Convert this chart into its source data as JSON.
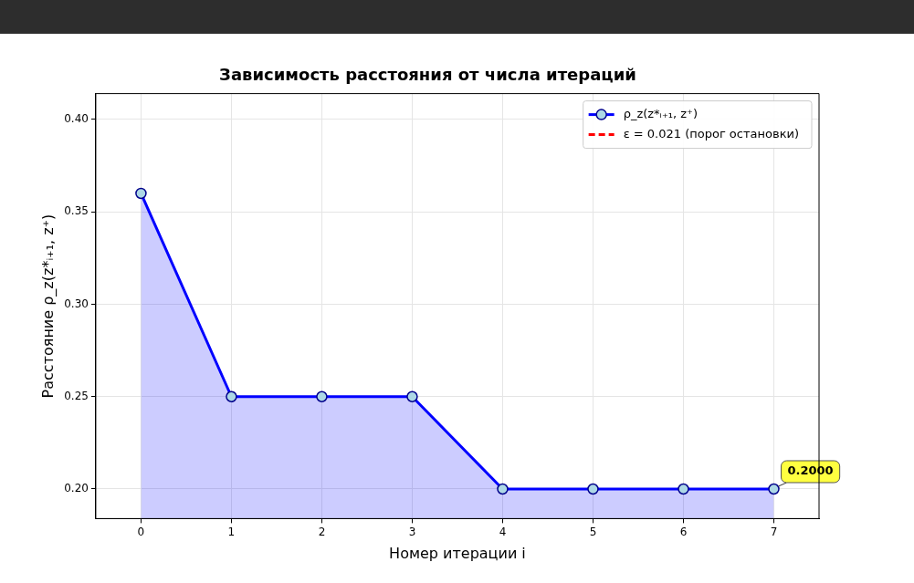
{
  "chart_data": {
    "type": "area",
    "title": "Зависимость расстояния от числа итераций",
    "xlabel": "Номер итерации i",
    "ylabel": "Расстояние ρ_z(z*ᵢ₊₁, z⁺)",
    "x": [
      0,
      1,
      2,
      3,
      4,
      5,
      6,
      7
    ],
    "series": [
      {
        "name": "ρ_z(z*ᵢ₊₁, z⁺)",
        "color": "#0000ff",
        "values": [
          0.36,
          0.25,
          0.25,
          0.25,
          0.2,
          0.2,
          0.2,
          0.2
        ]
      },
      {
        "name": "ε = 0.021 (порог остановки)",
        "type": "line",
        "line_style": "dashed",
        "color": "#ff0000",
        "values": [
          null,
          null,
          null,
          null,
          null,
          null,
          null,
          null
        ]
      }
    ],
    "xlim": [
      -0.5,
      7.5
    ],
    "xticks": [
      0,
      1,
      2,
      3,
      4,
      5,
      6,
      7
    ],
    "ylim": [
      0.184,
      0.414
    ],
    "yticks": [
      {
        "value": 0.2,
        "label": "0.20"
      },
      0.25,
      {
        "value": 0.3,
        "label": "0.30"
      },
      0.35,
      {
        "value": 0.4,
        "label": "0.40"
      }
    ],
    "grid": true,
    "legend": "top right",
    "marker": "circle",
    "annotations": [
      {
        "text": "0.2000",
        "x": 7,
        "y": 0.2
      }
    ]
  }
}
